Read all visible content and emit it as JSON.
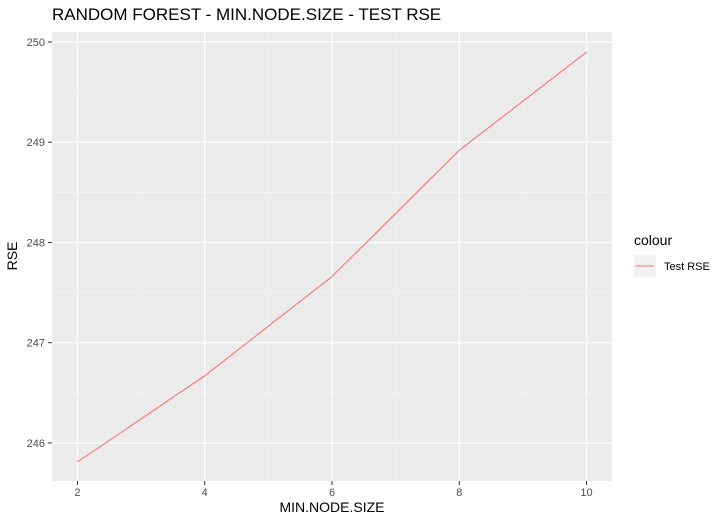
{
  "chart_data": {
    "type": "line",
    "title": "RANDOM FOREST - MIN.NODE.SIZE - TEST RSE",
    "xlabel": "MIN.NODE.SIZE",
    "ylabel": "RSE",
    "xlim": [
      1.6,
      10.4
    ],
    "ylim": [
      245.62,
      250.1
    ],
    "x_ticks": [
      2,
      4,
      6,
      8,
      10
    ],
    "y_ticks": [
      246,
      247,
      248,
      249,
      250
    ],
    "x_minor": [
      3,
      5,
      7,
      9
    ],
    "y_minor": [
      246.5,
      247.5,
      248.5,
      249.5
    ],
    "grid": true,
    "legend": {
      "title": "colour",
      "placement": "right",
      "entries": [
        "Test RSE"
      ]
    },
    "series": [
      {
        "name": "Test RSE",
        "color": "#F8766D",
        "x": [
          2,
          4,
          6,
          8,
          10
        ],
        "y": [
          245.81,
          246.67,
          247.66,
          248.92,
          249.9
        ]
      }
    ]
  },
  "colors": {
    "panel_bg": "#EBEBEB",
    "grid_major": "#FFFFFF",
    "tick": "#333333"
  }
}
